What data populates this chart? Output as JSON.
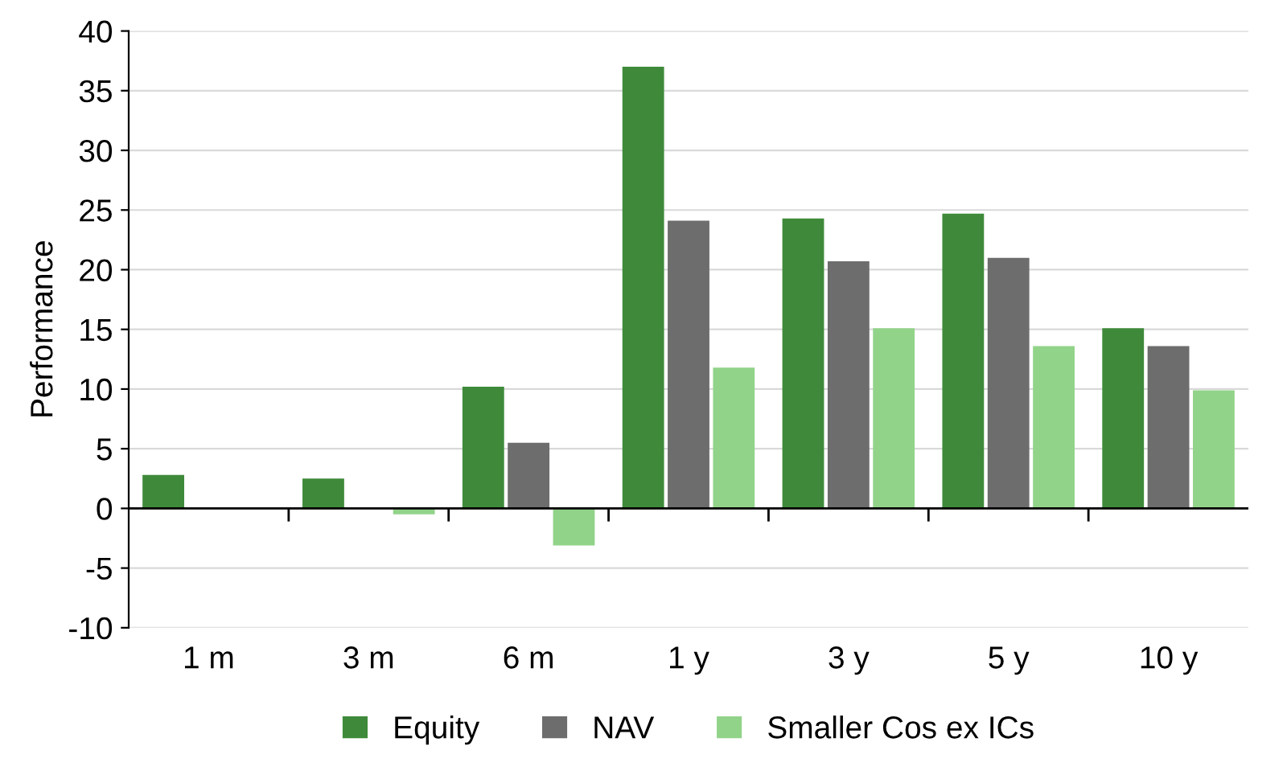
{
  "chart_data": {
    "type": "bar",
    "ylabel": "Performance",
    "categories": [
      "1 m",
      "3 m",
      "6 m",
      "1 y",
      "3 y",
      "5 y",
      "10 y"
    ],
    "series": [
      {
        "name": "Equity",
        "color": "#3e8a3a",
        "values": [
          2.8,
          2.5,
          10.2,
          37.0,
          24.3,
          24.7,
          15.1
        ]
      },
      {
        "name": "NAV",
        "color": "#6d6d6d",
        "values": [
          0,
          0,
          5.5,
          24.1,
          20.7,
          21.0,
          13.6
        ]
      },
      {
        "name": "Smaller Cos ex ICs",
        "color": "#92d38a",
        "values": [
          0,
          -0.5,
          -3.1,
          11.8,
          15.1,
          13.6,
          9.9
        ]
      }
    ],
    "ylim": [
      -10,
      40
    ],
    "yticks": [
      -10,
      -5,
      0,
      5,
      10,
      15,
      20,
      25,
      30,
      35,
      40
    ],
    "grid": "y",
    "legend": "bottom"
  }
}
